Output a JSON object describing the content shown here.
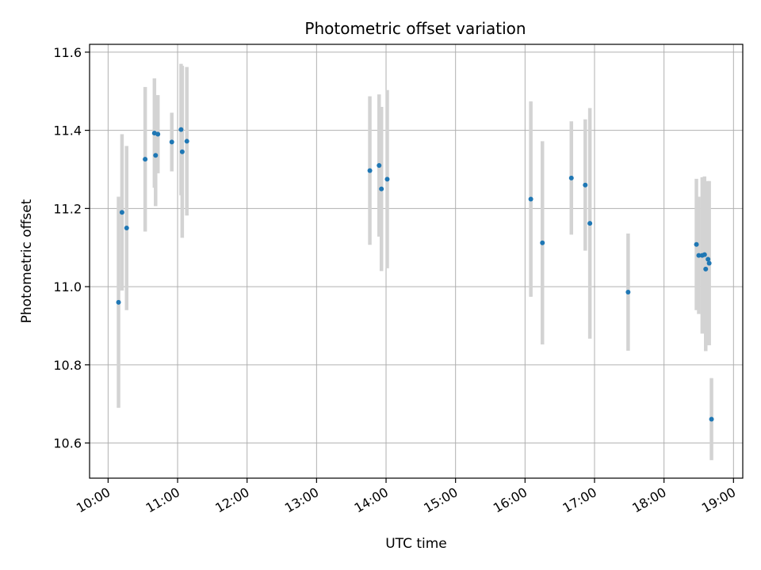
{
  "chart_data": {
    "type": "scatter",
    "title": "Photometric offset variation",
    "xlabel": "UTC time",
    "ylabel": "Photometric offset",
    "x_ticks": [
      "10:00",
      "11:00",
      "12:00",
      "13:00",
      "14:00",
      "15:00",
      "16:00",
      "17:00",
      "18:00",
      "19:00"
    ],
    "y_ticks": [
      "10.6",
      "10.8",
      "11.0",
      "11.2",
      "11.4",
      "11.6"
    ],
    "xlim": [
      "09:44",
      "19:08"
    ],
    "ylim": [
      10.51,
      11.62
    ],
    "grid": true,
    "colors": {
      "point": "#1f77b4",
      "errorbar": "#d3d3d3",
      "grid": "#b0b0b0"
    },
    "points": [
      {
        "x": "10:09",
        "y": 10.96,
        "err": 0.27
      },
      {
        "x": "10:12",
        "y": 11.19,
        "err": 0.2
      },
      {
        "x": "10:16",
        "y": 11.15,
        "err": 0.21
      },
      {
        "x": "10:32",
        "y": 11.326,
        "err": 0.185
      },
      {
        "x": "10:40",
        "y": 11.393,
        "err": 0.14
      },
      {
        "x": "10:41",
        "y": 11.336,
        "err": 0.13
      },
      {
        "x": "10:43",
        "y": 11.39,
        "err": 0.1
      },
      {
        "x": "10:55",
        "y": 11.37,
        "err": 0.075
      },
      {
        "x": "11:03",
        "y": 11.402,
        "err": 0.168
      },
      {
        "x": "11:04",
        "y": 11.345,
        "err": 0.22
      },
      {
        "x": "11:08",
        "y": 11.372,
        "err": 0.19
      },
      {
        "x": "13:46",
        "y": 11.297,
        "err": 0.19
      },
      {
        "x": "13:54",
        "y": 11.31,
        "err": 0.182
      },
      {
        "x": "13:56",
        "y": 11.25,
        "err": 0.21
      },
      {
        "x": "14:01",
        "y": 11.275,
        "err": 0.228
      },
      {
        "x": "16:05",
        "y": 11.224,
        "err": 0.25
      },
      {
        "x": "16:15",
        "y": 11.112,
        "err": 0.26
      },
      {
        "x": "16:40",
        "y": 11.278,
        "err": 0.145
      },
      {
        "x": "16:52",
        "y": 11.26,
        "err": 0.168
      },
      {
        "x": "16:56",
        "y": 11.162,
        "err": 0.295
      },
      {
        "x": "17:29",
        "y": 10.986,
        "err": 0.15
      },
      {
        "x": "18:28",
        "y": 11.108,
        "err": 0.168
      },
      {
        "x": "18:30",
        "y": 11.08,
        "err": 0.15
      },
      {
        "x": "18:33",
        "y": 11.08,
        "err": 0.2
      },
      {
        "x": "18:35",
        "y": 11.082,
        "err": 0.2
      },
      {
        "x": "18:36",
        "y": 11.045,
        "err": 0.21
      },
      {
        "x": "18:38",
        "y": 11.07,
        "err": 0.2
      },
      {
        "x": "18:39",
        "y": 11.06,
        "err": 0.21
      },
      {
        "x": "18:41",
        "y": 10.661,
        "err": 0.105
      }
    ]
  }
}
